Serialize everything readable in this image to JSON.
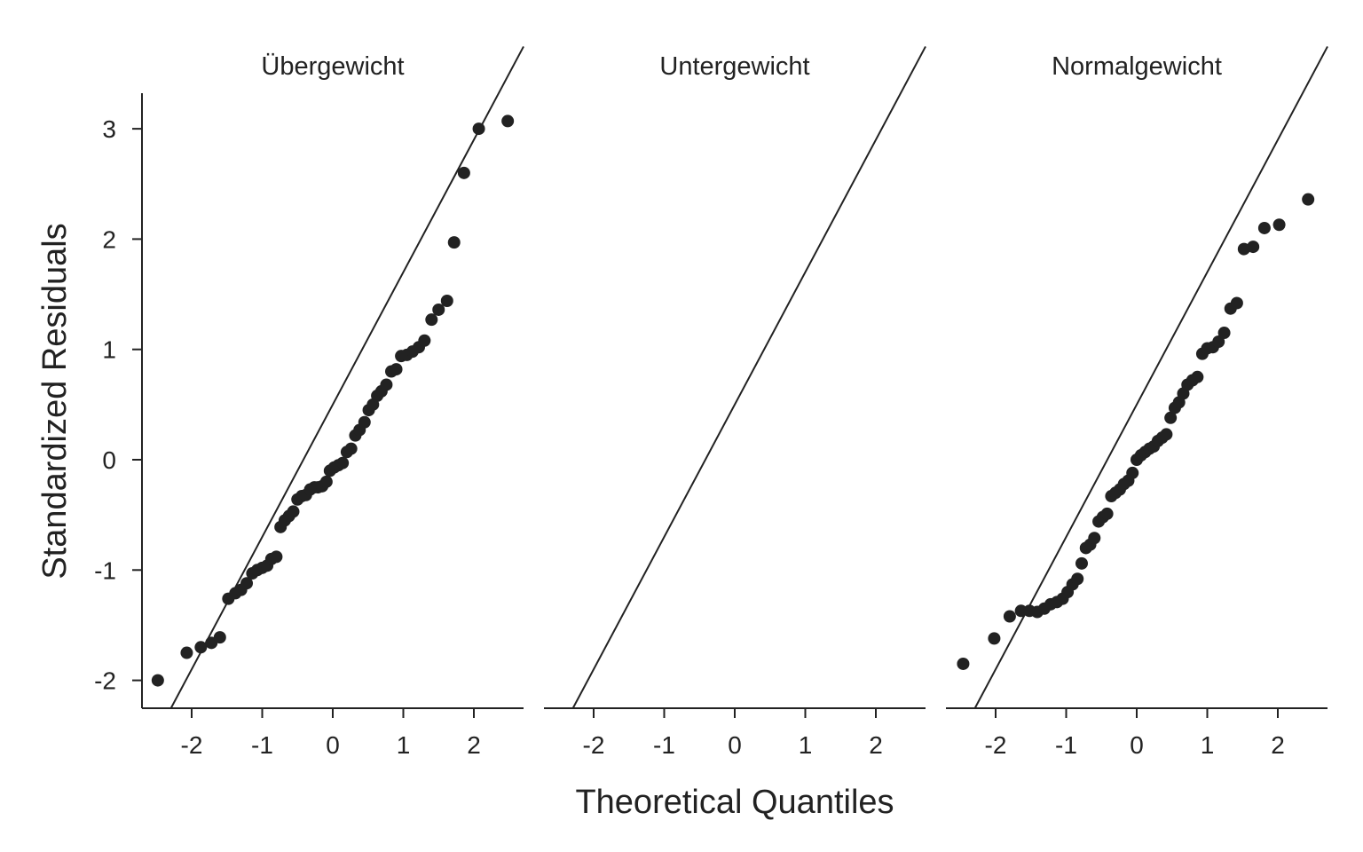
{
  "chart_data": {
    "type": "scatter",
    "xlabel": "Theoretical Quantiles",
    "ylabel": "Standardized Residuals",
    "xlim": [
      -2.7,
      2.7
    ],
    "ylim": [
      -2.25,
      3.3
    ],
    "x_ticks": [
      "-2",
      "-1",
      "0",
      "1",
      "2"
    ],
    "y_ticks": [
      "-2",
      "-1",
      "0",
      "1",
      "2",
      "3"
    ],
    "reference_line": {
      "slope": 1.2,
      "intercept": 0.5
    },
    "panels": [
      {
        "title": "Übergewicht",
        "points": [
          [
            -2.48,
            -2.0
          ],
          [
            -2.07,
            -1.75
          ],
          [
            -1.87,
            -1.7
          ],
          [
            -1.72,
            -1.66
          ],
          [
            -1.6,
            -1.61
          ],
          [
            -1.48,
            -1.26
          ],
          [
            -1.38,
            -1.21
          ],
          [
            -1.3,
            -1.18
          ],
          [
            -1.22,
            -1.12
          ],
          [
            -1.14,
            -1.03
          ],
          [
            -1.07,
            -1.0
          ],
          [
            -1.0,
            -0.98
          ],
          [
            -0.93,
            -0.96
          ],
          [
            -0.87,
            -0.9
          ],
          [
            -0.8,
            -0.88
          ],
          [
            -0.74,
            -0.61
          ],
          [
            -0.68,
            -0.55
          ],
          [
            -0.62,
            -0.51
          ],
          [
            -0.56,
            -0.47
          ],
          [
            -0.5,
            -0.36
          ],
          [
            -0.44,
            -0.33
          ],
          [
            -0.38,
            -0.32
          ],
          [
            -0.32,
            -0.27
          ],
          [
            -0.26,
            -0.25
          ],
          [
            -0.21,
            -0.25
          ],
          [
            -0.15,
            -0.24
          ],
          [
            -0.09,
            -0.2
          ],
          [
            -0.04,
            -0.1
          ],
          [
            0.02,
            -0.07
          ],
          [
            0.08,
            -0.05
          ],
          [
            0.14,
            -0.03
          ],
          [
            0.2,
            0.07
          ],
          [
            0.26,
            0.1
          ],
          [
            0.32,
            0.22
          ],
          [
            0.38,
            0.27
          ],
          [
            0.45,
            0.34
          ],
          [
            0.51,
            0.45
          ],
          [
            0.57,
            0.5
          ],
          [
            0.63,
            0.58
          ],
          [
            0.69,
            0.62
          ],
          [
            0.76,
            0.68
          ],
          [
            0.83,
            0.8
          ],
          [
            0.9,
            0.82
          ],
          [
            0.97,
            0.94
          ],
          [
            1.05,
            0.95
          ],
          [
            1.13,
            0.98
          ],
          [
            1.22,
            1.02
          ],
          [
            1.3,
            1.08
          ],
          [
            1.4,
            1.27
          ],
          [
            1.5,
            1.36
          ],
          [
            1.62,
            1.44
          ],
          [
            1.72,
            1.97
          ],
          [
            1.86,
            2.6
          ],
          [
            2.07,
            3.0
          ],
          [
            2.48,
            3.07
          ]
        ]
      },
      {
        "title": "Untergewicht",
        "points": []
      },
      {
        "title": "Normalgewicht",
        "points": [
          [
            -2.46,
            -1.85
          ],
          [
            -2.02,
            -1.62
          ],
          [
            -1.8,
            -1.42
          ],
          [
            -1.64,
            -1.37
          ],
          [
            -1.52,
            -1.37
          ],
          [
            -1.41,
            -1.38
          ],
          [
            -1.31,
            -1.35
          ],
          [
            -1.22,
            -1.31
          ],
          [
            -1.13,
            -1.29
          ],
          [
            -1.05,
            -1.26
          ],
          [
            -0.98,
            -1.2
          ],
          [
            -0.91,
            -1.13
          ],
          [
            -0.84,
            -1.08
          ],
          [
            -0.78,
            -0.94
          ],
          [
            -0.72,
            -0.8
          ],
          [
            -0.66,
            -0.77
          ],
          [
            -0.6,
            -0.71
          ],
          [
            -0.54,
            -0.56
          ],
          [
            -0.48,
            -0.52
          ],
          [
            -0.42,
            -0.49
          ],
          [
            -0.36,
            -0.33
          ],
          [
            -0.3,
            -0.3
          ],
          [
            -0.24,
            -0.27
          ],
          [
            -0.18,
            -0.22
          ],
          [
            -0.12,
            -0.19
          ],
          [
            -0.06,
            -0.12
          ],
          [
            0.0,
            0.0
          ],
          [
            0.06,
            0.04
          ],
          [
            0.12,
            0.07
          ],
          [
            0.18,
            0.1
          ],
          [
            0.24,
            0.12
          ],
          [
            0.3,
            0.17
          ],
          [
            0.36,
            0.2
          ],
          [
            0.42,
            0.23
          ],
          [
            0.48,
            0.38
          ],
          [
            0.54,
            0.47
          ],
          [
            0.6,
            0.52
          ],
          [
            0.66,
            0.6
          ],
          [
            0.72,
            0.68
          ],
          [
            0.79,
            0.72
          ],
          [
            0.86,
            0.75
          ],
          [
            0.93,
            0.96
          ],
          [
            1.0,
            1.01
          ],
          [
            1.08,
            1.02
          ],
          [
            1.16,
            1.07
          ],
          [
            1.24,
            1.15
          ],
          [
            1.33,
            1.37
          ],
          [
            1.42,
            1.42
          ],
          [
            1.52,
            1.91
          ],
          [
            1.65,
            1.93
          ],
          [
            1.81,
            2.1
          ],
          [
            2.02,
            2.13
          ],
          [
            2.43,
            2.36
          ]
        ]
      }
    ]
  }
}
